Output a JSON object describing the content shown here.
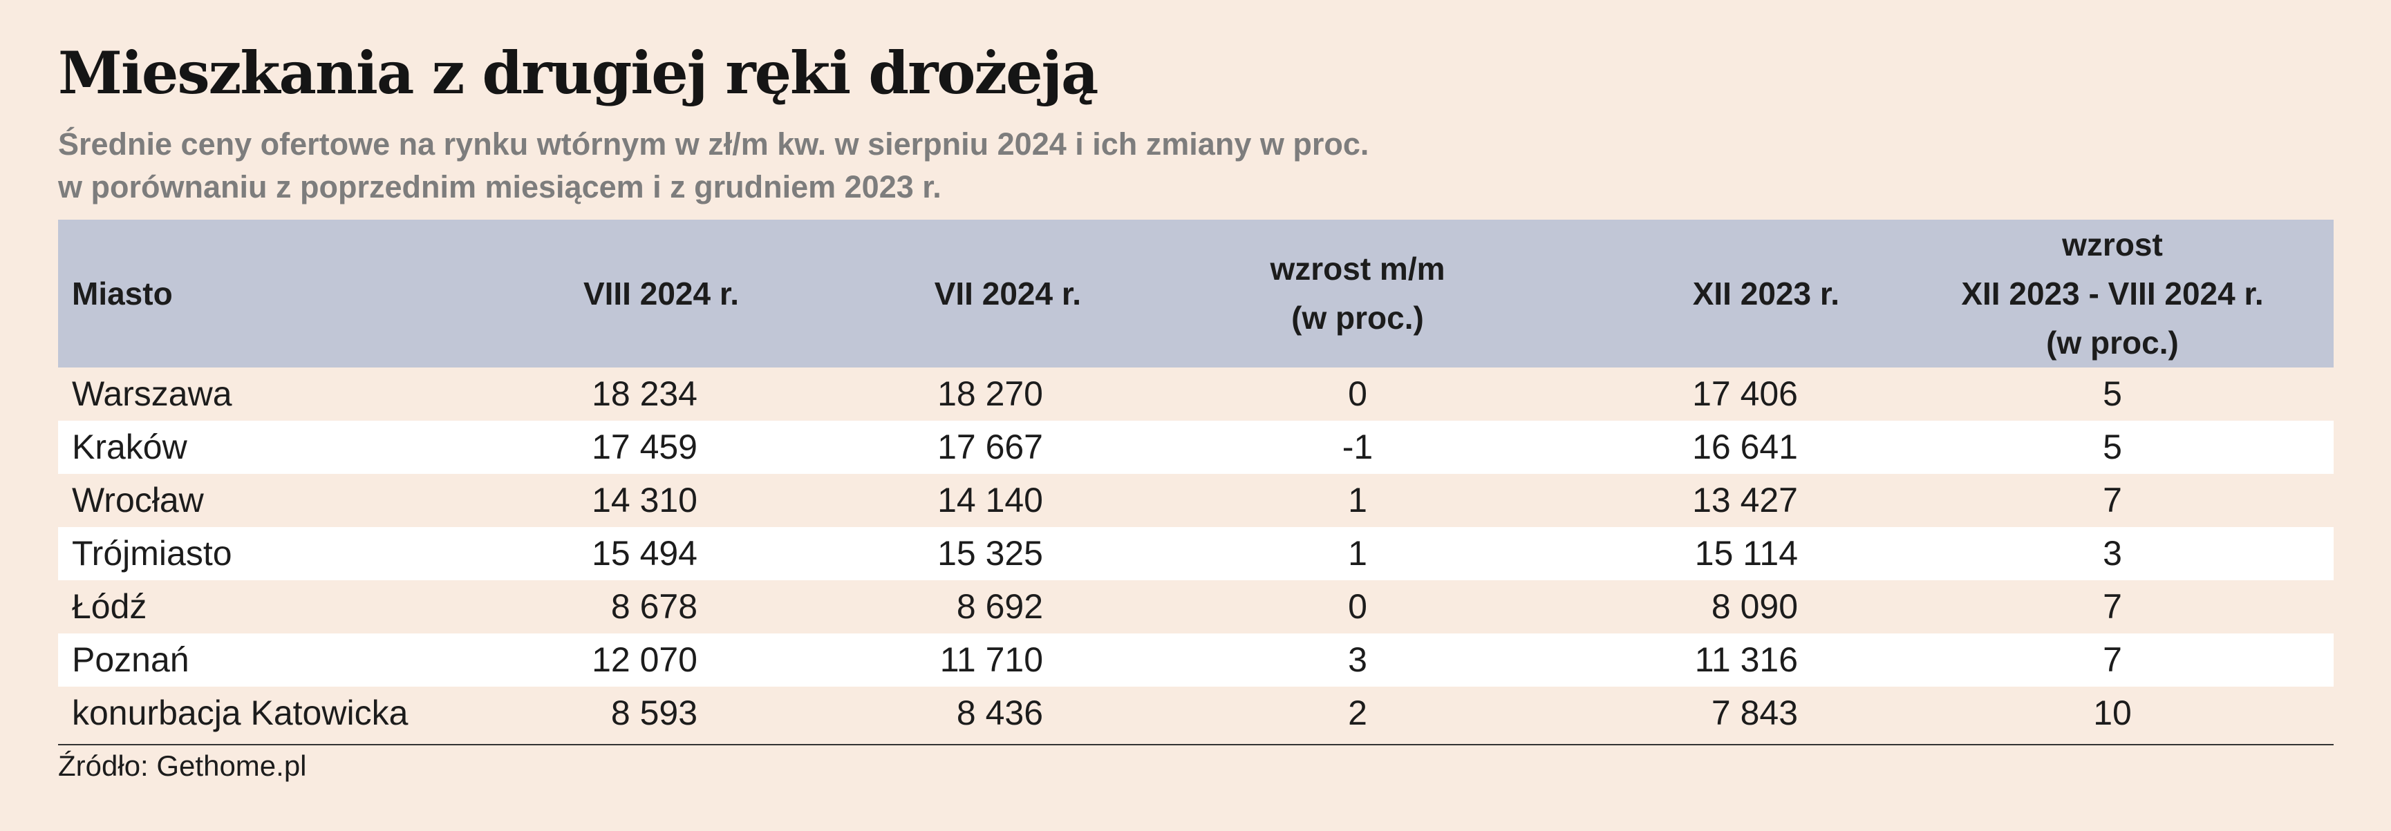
{
  "header": {
    "title": "Mieszkania z drugiej ręki drożeją",
    "subtitle_line1": "Średnie ceny ofertowe na rynku wtórnym w zł/m kw. w sierpniu 2024 i ich zmiany w proc.",
    "subtitle_line2": "w porównaniu z poprzednim miesiącem i z grudniem 2023 r."
  },
  "chart_data": {
    "type": "table",
    "columns": [
      [
        "Miasto"
      ],
      [
        "VIII 2024 r."
      ],
      [
        "VII 2024 r."
      ],
      [
        "wzrost m/m",
        "(w proc.)"
      ],
      [
        "XII 2023 r."
      ],
      [
        "wzrost",
        "XII 2023 - VIII 2024 r.",
        "(w proc.)"
      ]
    ],
    "rows": [
      [
        "Warszawa",
        "18 234",
        "18 270",
        "0",
        "17 406",
        "5"
      ],
      [
        "Kraków",
        "17 459",
        "17 667",
        "-1",
        "16 641",
        "5"
      ],
      [
        "Wrocław",
        "14 310",
        "14 140",
        "1",
        "13 427",
        "7"
      ],
      [
        "Trójmiasto",
        "15 494",
        "15 325",
        "1",
        "15 114",
        "3"
      ],
      [
        "Łódź",
        "8 678",
        "8 692",
        "0",
        "8 090",
        "7"
      ],
      [
        "Poznań",
        "12 070",
        "11 710",
        "3",
        "11 316",
        "7"
      ],
      [
        "konurbacja Katowicka",
        "8 593",
        "8 436",
        "2",
        "7 843",
        "10"
      ]
    ]
  },
  "footer": {
    "source": "Źródło: Gethome.pl"
  },
  "colors": {
    "background": "#f9ebe0",
    "header_band": "#c1c6d6",
    "alt_row": "#ffffff",
    "subtitle": "#7d7d7d"
  }
}
